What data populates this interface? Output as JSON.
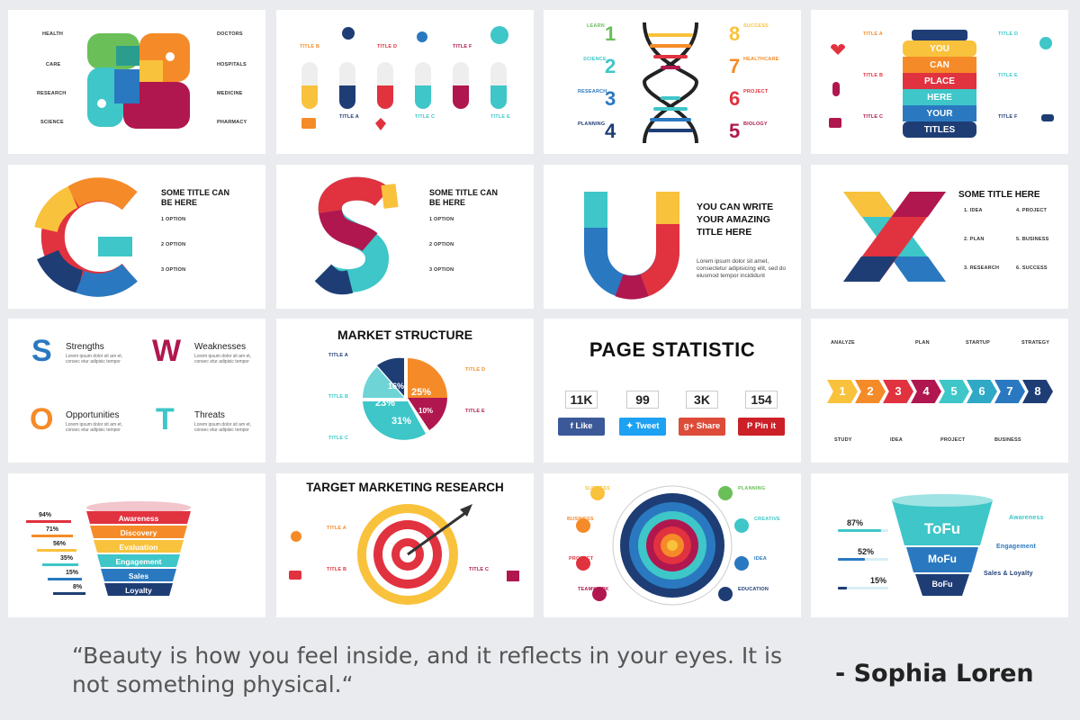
{
  "colors": {
    "red": "#e1323f",
    "orange": "#f58b28",
    "yellow": "#f9c23c",
    "green": "#6abf59",
    "teal": "#3ec6c8",
    "blue": "#2a79c0",
    "navy": "#1e3d75",
    "crimson": "#b0174f",
    "pink": "#e23d6e"
  },
  "body_text": "Lorem ipsum dolor sit amet, consec adipisc elit",
  "card1": {
    "left": [
      "HEALTH",
      "CARE",
      "RESEARCH",
      "SCIENCE"
    ],
    "right": [
      "DOCTORS",
      "HOSPITALS",
      "MEDICINE",
      "PHARMACY"
    ]
  },
  "card2": {
    "titles_top": [
      "TITLE B",
      "TITLE D",
      "TITLE F"
    ],
    "titles_bottom": [
      "TITLE A",
      "TITLE C",
      "TITLE E"
    ]
  },
  "card3": {
    "left": [
      {
        "label": "LEARN",
        "num": "1"
      },
      {
        "label": "SCIENCE",
        "num": "2"
      },
      {
        "label": "RESEARCH",
        "num": "3"
      },
      {
        "label": "PLANNING",
        "num": "4"
      }
    ],
    "right": [
      {
        "label": "SUCCESS",
        "num": "8"
      },
      {
        "label": "HEALTHCARE",
        "num": "7"
      },
      {
        "label": "PROJECT",
        "num": "6"
      },
      {
        "label": "BIOLOGY",
        "num": "5"
      }
    ]
  },
  "card4": {
    "left": [
      "TITLE A",
      "TITLE B",
      "TITLE C"
    ],
    "right": [
      "TITLE D",
      "TITLE E",
      "TITLE F"
    ],
    "jar": [
      "YOU",
      "CAN",
      "PLACE",
      "HERE",
      "YOUR",
      "TITLES"
    ]
  },
  "card5": {
    "title": "SOME TITLE CAN BE HERE",
    "options": [
      "1 OPTION",
      "2 OPTION",
      "3 OPTION"
    ]
  },
  "card6": {
    "title": "SOME TITLE CAN BE HERE",
    "options": [
      "1 OPTION",
      "2 OPTION",
      "3 OPTION"
    ]
  },
  "card7": {
    "title": "YOU CAN WRITE YOUR AMAZING TITLE HERE",
    "body": "Lorem ipsum dolor sit amet, consectetur adipisicing elit, sed do eiusmod tempor incididunt"
  },
  "card8": {
    "title": "SOME TITLE HERE",
    "items": [
      "1. IDEA",
      "2. PLAN",
      "3. RESEARCH",
      "4. PROJECT",
      "5. BUSINESS",
      "6. SUCCESS"
    ]
  },
  "card9": {
    "items": [
      {
        "letter": "S",
        "label": "Strengths"
      },
      {
        "letter": "W",
        "label": "Weaknesses"
      },
      {
        "letter": "O",
        "label": "Opportunities"
      },
      {
        "letter": "T",
        "label": "Threats"
      }
    ],
    "body": "Lorem ipsum dolor sit am et, consec etur adipisic tempor"
  },
  "card10": {
    "title": "MARKET STRUCTURE",
    "titles_left": [
      "TITLE A",
      "TITLE B",
      "TITLE C"
    ],
    "titles_right": [
      "TITLE D",
      "TITLE E"
    ],
    "slices": [
      "25%",
      "10%",
      "31%",
      "23%",
      "16%"
    ]
  },
  "card11": {
    "title": "PAGE STATISTIC",
    "stats": [
      "11K",
      "99",
      "3K",
      "154"
    ],
    "buttons": [
      "Like",
      "Tweet",
      "Share",
      "Pin it"
    ]
  },
  "card12": {
    "top": [
      "ANALYZE",
      "PLAN",
      "STARTUP",
      "STRATEGY"
    ],
    "bottom": [
      "STUDY",
      "IDEA",
      "PROJECT",
      "BUSINESS"
    ],
    "steps": [
      "1",
      "2",
      "3",
      "4",
      "5",
      "6",
      "7",
      "8"
    ]
  },
  "card13": {
    "levels": [
      "Awareness",
      "Discovery",
      "Evaluation",
      "Engagement",
      "Sales",
      "Loyalty"
    ],
    "pcts": [
      "94%",
      "71%",
      "56%",
      "35%",
      "15%",
      "8%"
    ]
  },
  "card14": {
    "title": "TARGET MARKETING RESEARCH",
    "titles_left": [
      "TITLE A",
      "TITLE B"
    ],
    "titles_right": [
      "TITLE C"
    ]
  },
  "card15": {
    "left": [
      "SUCCESS",
      "BUSINESS",
      "PROJECT",
      "TEAMWORK"
    ],
    "right": [
      "PLANNING",
      "CREATIVE",
      "IDEA",
      "EDUCATION"
    ]
  },
  "card16": {
    "levels": [
      "ToFu",
      "MoFu",
      "BoFu"
    ],
    "pcts": [
      "87%",
      "52%",
      "15%"
    ],
    "labels": [
      "Awareness",
      "Engagement",
      "Sales & Loyalty"
    ]
  },
  "quote": {
    "text": "“Beauty is how you feel inside, and it reflects in your eyes. It is not something physical.“",
    "author": "- Sophia Loren"
  }
}
